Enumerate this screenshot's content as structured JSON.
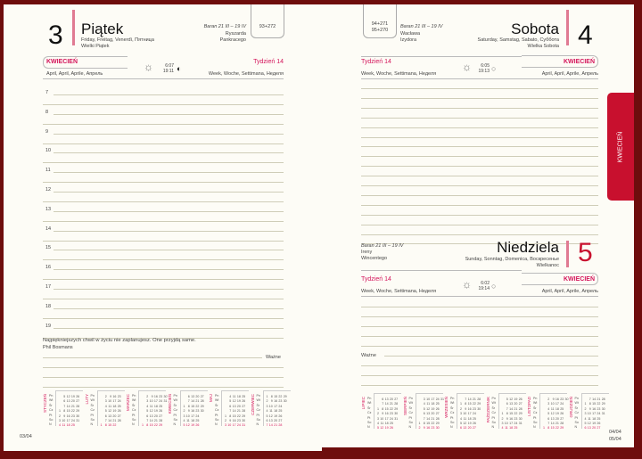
{
  "left_page": {
    "day_number": "3",
    "day_name": "Piątek",
    "day_translations": "Friday, Freitag, Venerdì, Пятница",
    "holiday": "Wielki Piątek",
    "zodiac": "Baran 21 III – 19 IV",
    "namedays": [
      "Ryszarda",
      "Pankracego"
    ],
    "day_of_year": "93+272",
    "month": "KWIECIEŃ",
    "month_translations": "April, April, Aprile, Апрель",
    "sunrise": "6:07",
    "sunset": "19:11",
    "moon_icon": "moon-half",
    "week": "Tydzień 14",
    "week_translations": "Week, Woche, Settimana, Неделя",
    "hours": [
      "7",
      "8",
      "9",
      "10",
      "11",
      "12",
      "13",
      "14",
      "15",
      "16",
      "17",
      "18",
      "19"
    ],
    "quote": "Najpiękniejszych chwil w życiu nie zaplanujesz. One przyjdą same.",
    "quote_author": "Phil Bosmans",
    "important_label": "Ważne",
    "page_number": "03/04",
    "months": [
      "STYCZEŃ",
      "LUTY",
      "MARZEC",
      "KWIECIEŃ",
      "MAJ",
      "CZERWIEC"
    ]
  },
  "right_page": {
    "saturday": {
      "day_number": "4",
      "day_name": "Sobota",
      "day_translations": "Saturday, Samstag, Sabato, Суббота",
      "holiday": "Wielka Sobota",
      "zodiac": "Baran 21 III – 19 IV",
      "namedays": [
        "Wacława",
        "Izydora"
      ],
      "day_of_year": "94+271",
      "day_of_year_next": "95+270",
      "month": "KWIECIEŃ",
      "month_translations": "April, April, Aprile, Апрель",
      "sunrise": "6:05",
      "sunset": "19:13",
      "week": "Tydzień 14",
      "week_translations": "Week, Woche, Settimana, Неделя"
    },
    "sunday": {
      "day_number": "5",
      "day_name": "Niedziela",
      "day_translations": "Sunday, Sonntag, Domenica, Воскресенье",
      "holiday": "Wielkanoc",
      "zodiac": "Baran 21 III – 19 IV",
      "namedays": [
        "Ireny",
        "Wincentego"
      ],
      "month": "KWIECIEŃ",
      "month_translations": "April, April, Aprile, Апрель",
      "sunrise": "6:02",
      "sunset": "19:14",
      "week": "Tydzień 14",
      "week_translations": "Week, Woche, Settimana, Неделя"
    },
    "important_label": "Ważne",
    "page_number_sat": "04/04",
    "page_number_sun": "05/04",
    "months": [
      "LIPIEC",
      "SIERPIEŃ",
      "WRZESIEŃ",
      "PAŹDZIERNIK",
      "LISTOPAD",
      "GRUDZIEŃ"
    ]
  },
  "weekday_abbr": [
    "Pn",
    "Wt",
    "Śr",
    "Cz",
    "Pt",
    "So",
    "N"
  ],
  "side_tab": "KWIECIEŃ",
  "colors": {
    "accent": "#d4145a",
    "frame": "#6e0d0d",
    "tab": "#c8102e",
    "paper": "#fdfcf6"
  }
}
